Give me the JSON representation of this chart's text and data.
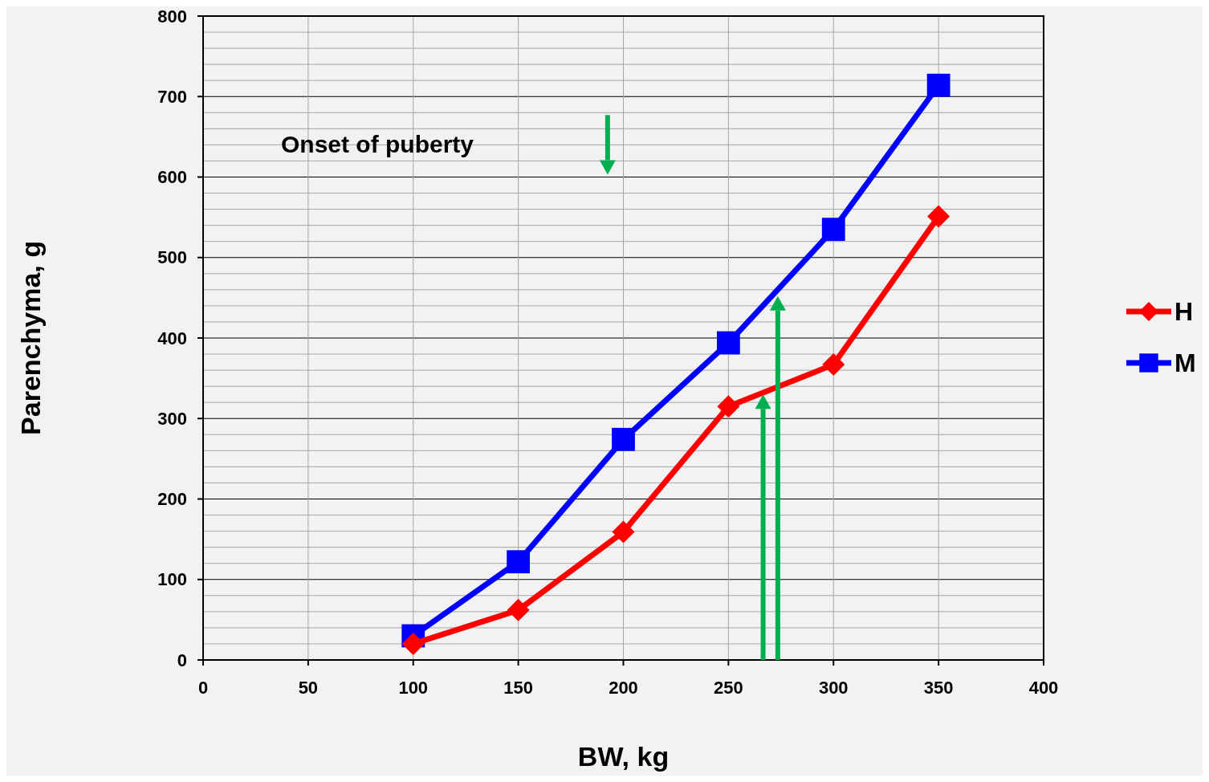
{
  "chart_data": {
    "type": "line",
    "xlabel": "BW, kg",
    "ylabel": "Parenchyma, g",
    "annotations": [
      "Onset of puberty"
    ],
    "x": [
      100,
      150,
      200,
      250,
      300,
      350
    ],
    "series": [
      {
        "name": "H",
        "color": "#ff0000",
        "marker": "diamond",
        "values": [
          20,
          62,
          159,
          315,
          367,
          551
        ]
      },
      {
        "name": "M",
        "color": "#0000ff",
        "marker": "square",
        "values": [
          30,
          122,
          274,
          394,
          535,
          714
        ]
      }
    ],
    "xlim": [
      0,
      400
    ],
    "xticks": [
      0,
      50,
      100,
      150,
      200,
      250,
      300,
      350,
      400
    ],
    "ylim": [
      0,
      800
    ],
    "yticks": [
      0,
      {
        "value": 20,
        "label": null
      },
      {
        "value": 40,
        "label": null
      },
      {
        "value": 60,
        "label": null
      },
      {
        "value": 80,
        "label": null
      },
      100,
      {
        "value": 120,
        "label": null
      },
      {
        "value": 140,
        "label": null
      },
      {
        "value": 160,
        "label": null
      },
      {
        "value": 180,
        "label": null
      },
      200,
      {
        "value": 220,
        "label": null
      },
      {
        "value": 240,
        "label": null
      },
      {
        "value": 260,
        "label": null
      },
      {
        "value": 280,
        "label": null
      },
      300,
      {
        "value": 320,
        "label": null
      },
      {
        "value": 340,
        "label": null
      },
      {
        "value": 360,
        "label": null
      },
      {
        "value": 380,
        "label": null
      },
      400,
      {
        "value": 420,
        "label": null
      },
      {
        "value": 440,
        "label": null
      },
      {
        "value": 460,
        "label": null
      },
      {
        "value": 480,
        "label": null
      },
      500,
      {
        "value": 520,
        "label": null
      },
      {
        "value": 540,
        "label": null
      },
      {
        "value": 560,
        "label": null
      },
      {
        "value": 580,
        "label": null
      },
      600,
      {
        "value": 620,
        "label": null
      },
      {
        "value": 640,
        "label": null
      },
      {
        "value": 660,
        "label": null
      },
      {
        "value": 680,
        "label": null
      },
      700,
      {
        "value": 720,
        "label": null
      },
      {
        "value": 740,
        "label": null
      },
      {
        "value": 760,
        "label": null
      },
      {
        "value": 780,
        "label": null
      },
      800
    ],
    "grid": true,
    "legend": "right",
    "line_style": "solid"
  }
}
